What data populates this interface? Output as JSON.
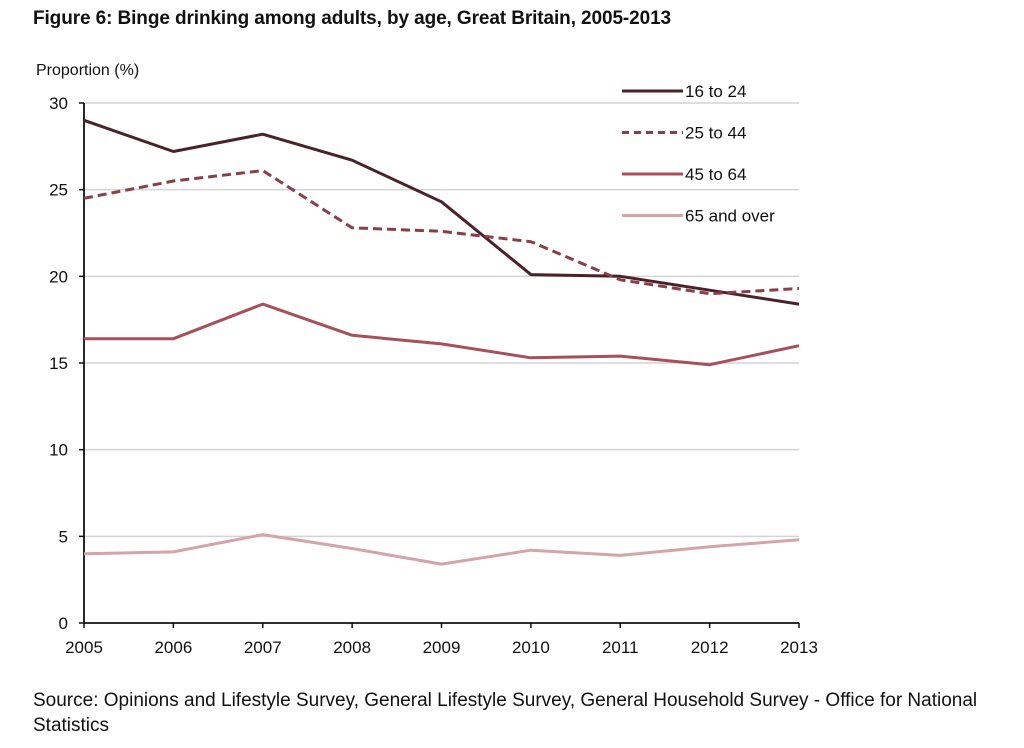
{
  "chart_data": {
    "type": "line",
    "title": "Figure 6: Binge drinking among adults, by age, Great Britain, 2005-2013",
    "ylabel": "Proportion (%)",
    "xlabel": "",
    "x": [
      "2005",
      "2006",
      "2007",
      "2008",
      "2009",
      "2010",
      "2011",
      "2012",
      "2013"
    ],
    "ylim": [
      0,
      30
    ],
    "yticks": [
      "0",
      "5",
      "10",
      "15",
      "20",
      "25",
      "30"
    ],
    "grid": true,
    "legend_position": "top-right",
    "series": [
      {
        "name": "16 to 24",
        "style": "solid",
        "color": "#4a2328",
        "values": [
          29.0,
          27.2,
          28.2,
          26.7,
          24.3,
          20.1,
          20.0,
          19.2,
          18.4
        ]
      },
      {
        "name": "25 to 44",
        "style": "dashed",
        "color": "#8a3f47",
        "values": [
          24.5,
          25.5,
          26.1,
          22.8,
          22.6,
          22.0,
          19.8,
          19.0,
          19.3
        ]
      },
      {
        "name": "45 to 64",
        "style": "solid",
        "color": "#a8505a",
        "values": [
          16.4,
          16.4,
          18.4,
          16.6,
          16.1,
          15.3,
          15.4,
          14.9,
          16.0
        ]
      },
      {
        "name": "65 and over",
        "style": "solid",
        "color": "#d4a5a8",
        "values": [
          4.0,
          4.1,
          5.1,
          4.3,
          3.4,
          4.2,
          3.9,
          4.4,
          4.8
        ]
      }
    ]
  },
  "source_text": "Source: Opinions and Lifestyle Survey, General Lifestyle Survey, General Household Survey - Office for National Statistics"
}
